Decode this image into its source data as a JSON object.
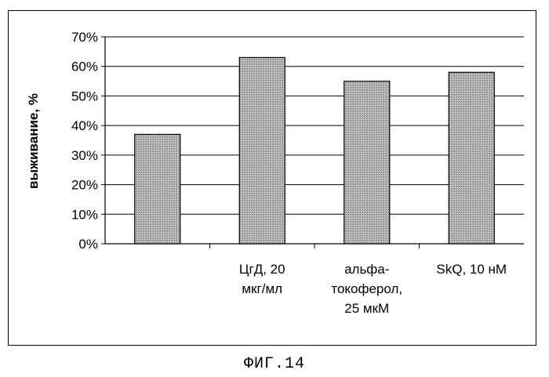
{
  "chart_data": {
    "type": "bar",
    "title": "",
    "xlabel": "",
    "ylabel": "выживание, %",
    "ylim": [
      0,
      70
    ],
    "yticks": [
      "0%",
      "10%",
      "20%",
      "30%",
      "40%",
      "50%",
      "60%",
      "70%"
    ],
    "categories": [
      [
        ""
      ],
      [
        "ЦгД, 20",
        "мкг/мл"
      ],
      [
        "альфа-",
        "токоферол,",
        "25 мкМ"
      ],
      [
        "SkQ, 10 нМ"
      ]
    ],
    "values": [
      37,
      63,
      55,
      58
    ],
    "grid": true,
    "legend": "none",
    "bar_color": "#a9a9a9",
    "bar_edge_color": "#000000"
  },
  "caption": "ФИГ.14"
}
